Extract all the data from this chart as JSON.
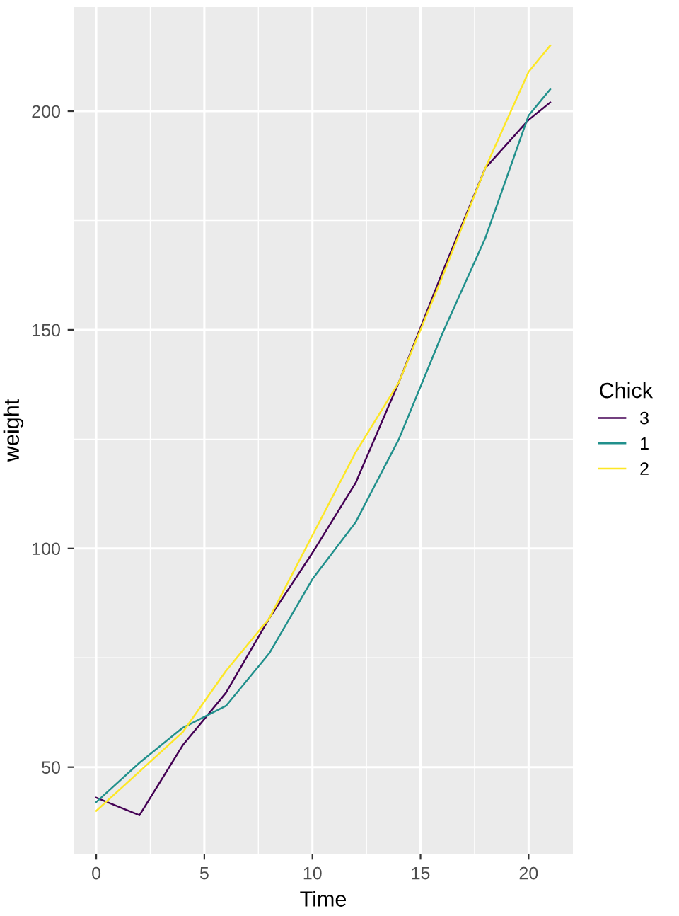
{
  "chart_data": {
    "type": "line",
    "xlabel": "Time",
    "ylabel": "weight",
    "legend_title": "Chick",
    "x": [
      0,
      2,
      4,
      6,
      8,
      10,
      12,
      14,
      16,
      18,
      20,
      21
    ],
    "series": [
      {
        "name": "3",
        "color": "#440154",
        "values": [
          43,
          39,
          55,
          67,
          84,
          99,
          115,
          138,
          163,
          187,
          198,
          202
        ]
      },
      {
        "name": "1",
        "color": "#21908c",
        "values": [
          42,
          51,
          59,
          64,
          76,
          93,
          106,
          125,
          149,
          171,
          199,
          205
        ]
      },
      {
        "name": "2",
        "color": "#fde725",
        "values": [
          40,
          49,
          58,
          72,
          84,
          103,
          122,
          138,
          162,
          187,
          209,
          215
        ]
      }
    ],
    "xlim": [
      -1.05,
      22.05
    ],
    "ylim": [
      30.2,
      223.8
    ],
    "xticks": [
      0,
      5,
      10,
      15,
      20
    ],
    "yticks": [
      50,
      100,
      150,
      200
    ],
    "grid": true,
    "legend": "right",
    "marker": "none",
    "line_style": "solid"
  }
}
